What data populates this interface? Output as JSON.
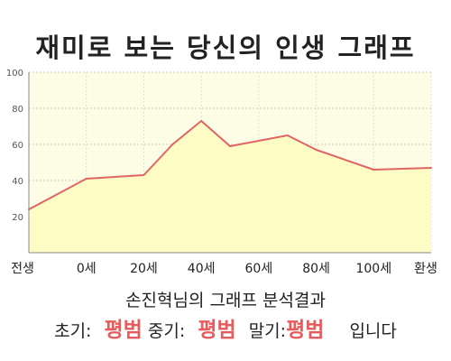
{
  "title": "재미로 보는 당신의 인생 그래프",
  "subtitle": "손진혁님의 그래프 분석결과",
  "result": {
    "early_label": "초기:",
    "early_value": "평범",
    "mid_label": "중기:",
    "mid_value": "평범",
    "late_label": "말기:",
    "late_value": "평범",
    "suffix": "입니다"
  },
  "colors": {
    "line": "#e06666",
    "fill": "#fdfcc4",
    "plot_bg": "#fdfce4",
    "highlight": "#e65c5c"
  },
  "chart_data": {
    "type": "area",
    "x_labels": [
      "전생",
      "0세",
      "20세",
      "40세",
      "60세",
      "80세",
      "100세",
      "환생"
    ],
    "x": [
      -20,
      0,
      20,
      30,
      40,
      50,
      60,
      70,
      80,
      100,
      120
    ],
    "y": [
      24,
      41,
      43,
      60,
      73,
      59,
      62,
      65,
      57,
      46,
      47
    ],
    "y_ticks": [
      20,
      40,
      60,
      80,
      100
    ],
    "xlim": [
      -20,
      120
    ],
    "ylim": [
      0,
      100
    ],
    "grid": true
  }
}
